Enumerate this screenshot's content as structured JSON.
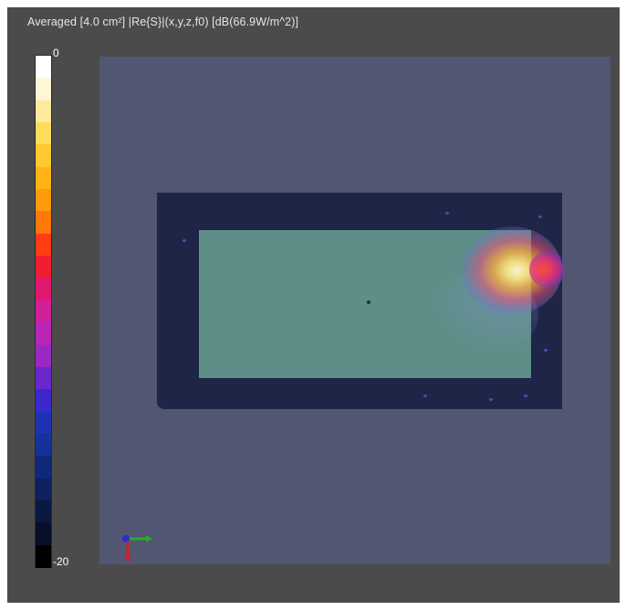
{
  "viewer": {
    "title": "Averaged [4.0 cm²] |Re{S}|(x,y,z,f0) [dB(66.9W/m^2)]"
  },
  "colorbar": {
    "max_label": "0",
    "min_label": "-20",
    "colors": [
      "#ffffff",
      "#fff6d5",
      "#ffe99a",
      "#ffdc5a",
      "#ffc830",
      "#ffb414",
      "#ff9a0a",
      "#ff780a",
      "#ff3c14",
      "#f01e32",
      "#e0186e",
      "#d0209a",
      "#b826b8",
      "#9a28c4",
      "#6a28cc",
      "#3a28cc",
      "#1e32b4",
      "#14329a",
      "#10287c",
      "#0e205e",
      "#0a1842",
      "#081028",
      "#000000"
    ]
  },
  "axes_triad": {
    "colors": {
      "x": "#2ea82e",
      "y": "#2a2ad8",
      "z": "#d02020"
    }
  },
  "colors": {
    "viewport_bg": "#4b4b4b",
    "field_bg": "#515672",
    "substrate": "#1f2547",
    "patch": "#5e8e88"
  }
}
